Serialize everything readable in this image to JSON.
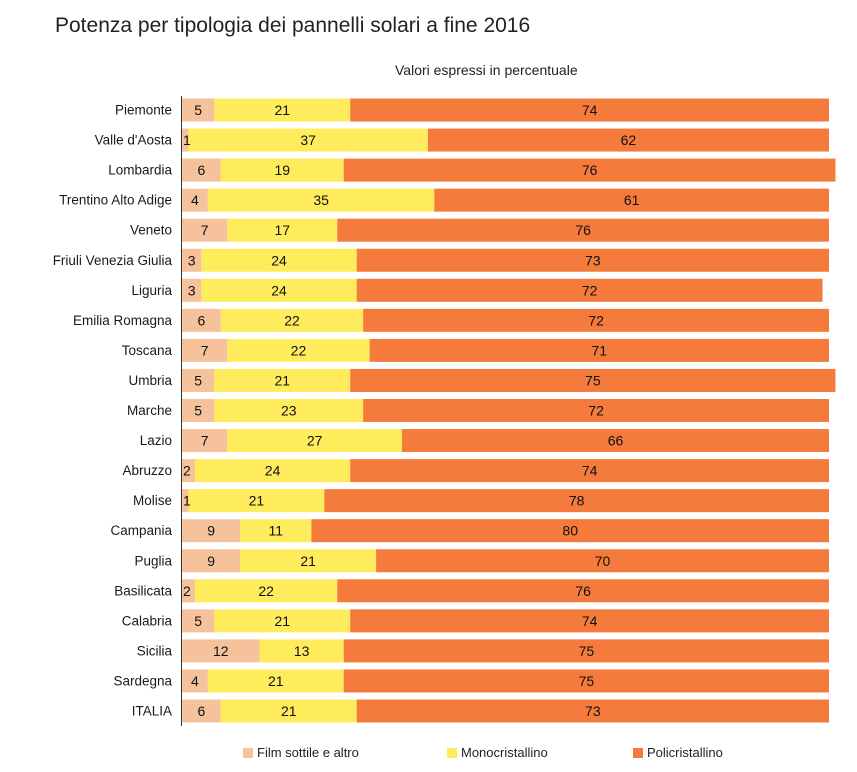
{
  "chart_data": {
    "type": "bar",
    "orientation": "horizontal",
    "stacked": true,
    "title": "Potenza per tipologia dei pannelli solari a fine 2016",
    "subtitle": "Valori espressi in percentuale",
    "categories": [
      "Piemonte",
      "Valle d'Aosta",
      "Lombardia",
      "Trentino Alto Adige",
      "Veneto",
      "Friuli Venezia Giulia",
      "Liguria",
      "Emilia Romagna",
      "Toscana",
      "Umbria",
      "Marche",
      "Lazio",
      "Abruzzo",
      "Molise",
      "Campania",
      "Puglia",
      "Basilicata",
      "Calabria",
      "Sicilia",
      "Sardegna",
      "ITALIA"
    ],
    "series": [
      {
        "name": "Film sottile e altro",
        "color": "#f5c29b",
        "values": [
          5,
          1,
          6,
          4,
          7,
          3,
          3,
          6,
          7,
          5,
          5,
          7,
          2,
          1,
          9,
          9,
          2,
          5,
          12,
          4,
          6
        ]
      },
      {
        "name": "Monocristallino",
        "color": "#ffec5c",
        "values": [
          21,
          37,
          19,
          35,
          17,
          24,
          24,
          22,
          22,
          21,
          23,
          27,
          24,
          21,
          11,
          21,
          22,
          21,
          13,
          21,
          21
        ]
      },
      {
        "name": "Policristallino",
        "color": "#f47b3c",
        "values": [
          74,
          62,
          76,
          61,
          76,
          73,
          72,
          72,
          71,
          75,
          72,
          66,
          74,
          78,
          80,
          70,
          76,
          74,
          75,
          75,
          73
        ]
      }
    ],
    "xlim": [
      0,
      100
    ],
    "grid": false,
    "legend_position": "bottom"
  }
}
